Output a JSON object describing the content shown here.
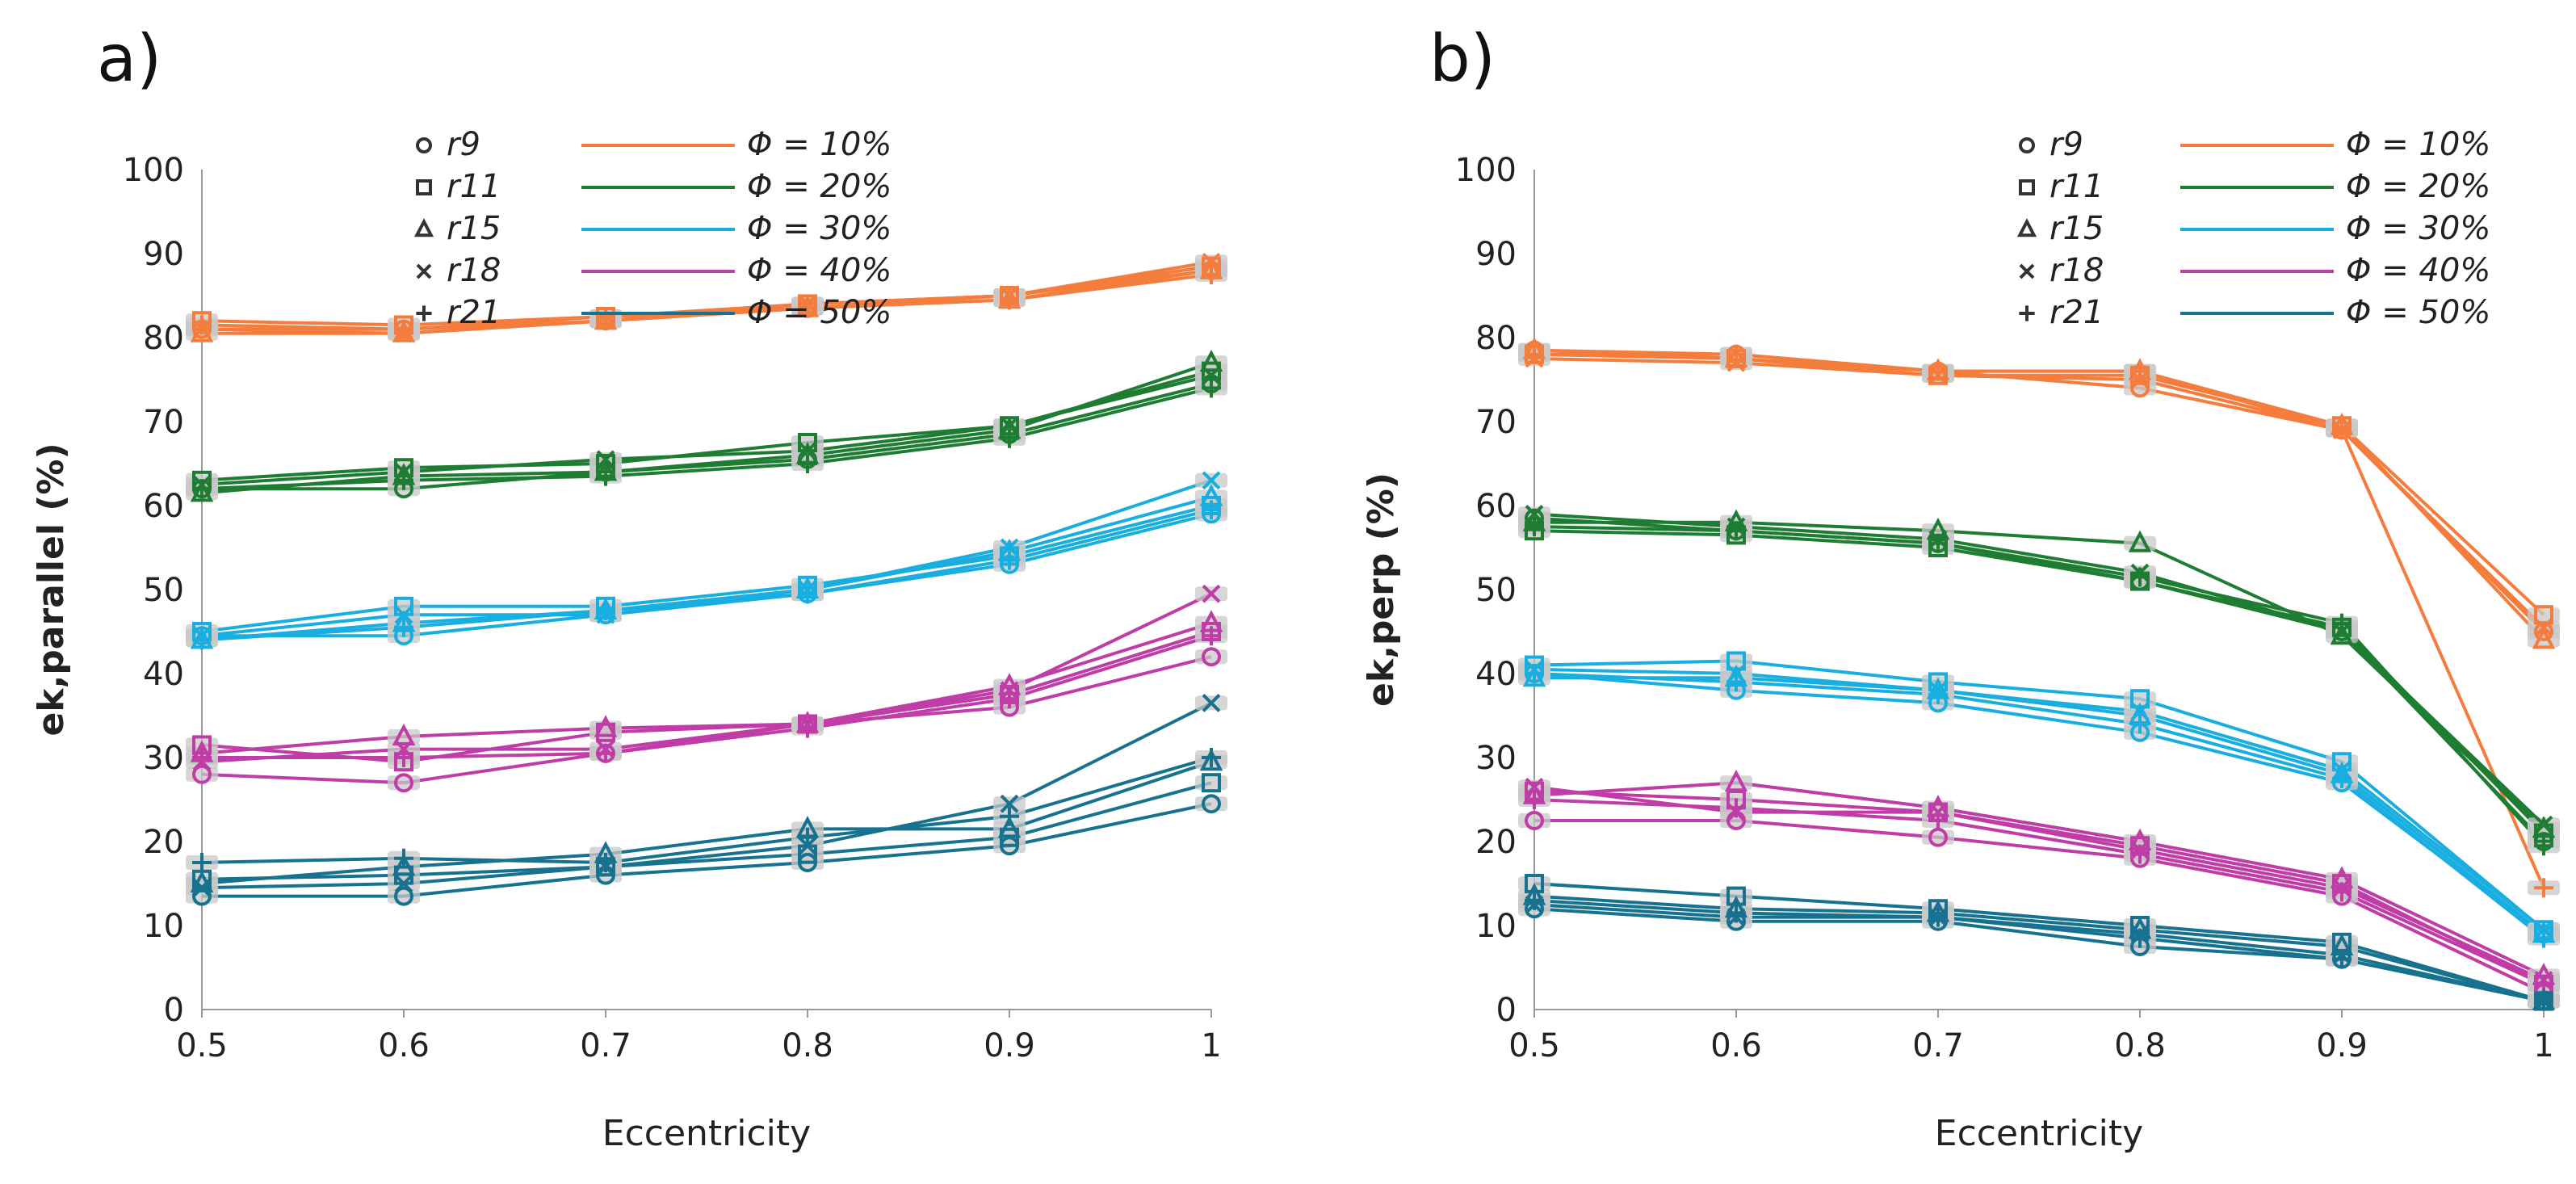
{
  "chart_data": [
    {
      "type": "line",
      "panel_label": "a)",
      "xlabel": "Eccentricity",
      "ylabel": "ek,parallel (%)",
      "x": [
        0.5,
        0.6,
        0.7,
        0.8,
        0.9,
        1
      ],
      "x_tick_labels": [
        "0.5",
        "0.6",
        "0.7",
        "0.8",
        "0.9",
        "1"
      ],
      "ylim": [
        0,
        100
      ],
      "y_ticks": [
        "0",
        "10",
        "20",
        "30",
        "40",
        "50",
        "60",
        "70",
        "80",
        "90",
        "100"
      ],
      "legend_markers": [
        {
          "label": "r9",
          "marker": "circle"
        },
        {
          "label": "r11",
          "marker": "square"
        },
        {
          "label": "r15",
          "marker": "triangle"
        },
        {
          "label": "r18",
          "marker": "cross"
        },
        {
          "label": "r21",
          "marker": "plus"
        }
      ],
      "legend_series": [
        {
          "label": "Φ = 10%",
          "color": "#f47c3c"
        },
        {
          "label": "Φ = 20%",
          "color": "#1e7d33"
        },
        {
          "label": "Φ = 30%",
          "color": "#19aee0"
        },
        {
          "label": "Φ = 40%",
          "color": "#c03ca6"
        },
        {
          "label": "Φ = 50%",
          "color": "#17728f"
        }
      ],
      "series": [
        {
          "name": "Φ = 10% r9",
          "color": "#f47c3c",
          "values": [
            81,
            81,
            82,
            83.5,
            85,
            88
          ]
        },
        {
          "name": "Φ = 10% r11",
          "color": "#f47c3c",
          "values": [
            82,
            81.5,
            82.5,
            84,
            85,
            88.5
          ]
        },
        {
          "name": "Φ = 10% r15",
          "color": "#f47c3c",
          "values": [
            80.5,
            80.5,
            82,
            83.5,
            84.5,
            88
          ]
        },
        {
          "name": "Φ = 10% r18",
          "color": "#f47c3c",
          "values": [
            81,
            80.5,
            82,
            84,
            85,
            89
          ]
        },
        {
          "name": "Φ = 10% r21",
          "color": "#f47c3c",
          "values": [
            81.5,
            81,
            82.5,
            83.5,
            84.5,
            87.5
          ]
        },
        {
          "name": "Φ = 20% r9",
          "color": "#1e7d33",
          "values": [
            62,
            62,
            64,
            65.5,
            68.5,
            74.5
          ]
        },
        {
          "name": "Φ = 20% r11",
          "color": "#1e7d33",
          "values": [
            63,
            64.5,
            65,
            67.5,
            69.5,
            76
          ]
        },
        {
          "name": "Φ = 20% r15",
          "color": "#1e7d33",
          "values": [
            61.5,
            63.5,
            64,
            66,
            69,
            77
          ]
        },
        {
          "name": "Φ = 20% r18",
          "color": "#1e7d33",
          "values": [
            62.5,
            64,
            65.5,
            66.5,
            69.5,
            75.5
          ]
        },
        {
          "name": "Φ = 20% r21",
          "color": "#1e7d33",
          "values": [
            62,
            63,
            63.5,
            65,
            68,
            74
          ]
        },
        {
          "name": "Φ = 30% r9",
          "color": "#19aee0",
          "values": [
            44.5,
            44.5,
            47,
            49.5,
            53,
            59
          ]
        },
        {
          "name": "Φ = 30% r11",
          "color": "#19aee0",
          "values": [
            45,
            48,
            48,
            50.5,
            54,
            60
          ]
        },
        {
          "name": "Φ = 30% r15",
          "color": "#19aee0",
          "values": [
            44,
            46,
            47.5,
            50,
            54.5,
            61
          ]
        },
        {
          "name": "Φ = 30% r18",
          "color": "#19aee0",
          "values": [
            44.5,
            47,
            47,
            50,
            55,
            63
          ]
        },
        {
          "name": "Φ = 30% r21",
          "color": "#19aee0",
          "values": [
            44,
            45.5,
            47.5,
            49.5,
            53.5,
            59.5
          ]
        },
        {
          "name": "Φ = 40% r9",
          "color": "#c03ca6",
          "values": [
            28,
            27,
            30.5,
            34,
            36,
            42
          ]
        },
        {
          "name": "Φ = 40% r11",
          "color": "#c03ca6",
          "values": [
            31.5,
            29.5,
            33,
            34,
            37.5,
            45
          ]
        },
        {
          "name": "Φ = 40% r15",
          "color": "#c03ca6",
          "values": [
            30.5,
            32.5,
            33.5,
            34,
            38.5,
            46
          ]
        },
        {
          "name": "Φ = 40% r18",
          "color": "#c03ca6",
          "values": [
            29.5,
            31,
            31,
            34,
            38,
            49.5
          ]
        },
        {
          "name": "Φ = 40% r21",
          "color": "#c03ca6",
          "values": [
            30,
            30,
            30.5,
            33.5,
            37,
            44.5
          ]
        },
        {
          "name": "Φ = 50% r9",
          "color": "#17728f",
          "values": [
            13.5,
            13.5,
            16,
            17.5,
            19.5,
            24.5
          ]
        },
        {
          "name": "Φ = 50% r11",
          "color": "#17728f",
          "values": [
            15.5,
            16,
            17,
            18.5,
            20.5,
            27
          ]
        },
        {
          "name": "Φ = 50% r15",
          "color": "#17728f",
          "values": [
            15,
            17,
            18.5,
            21.5,
            21.5,
            29.5
          ]
        },
        {
          "name": "Φ = 50% r18",
          "color": "#17728f",
          "values": [
            14.5,
            15,
            17,
            19.5,
            24.5,
            36.5
          ]
        },
        {
          "name": "Φ = 50% r21",
          "color": "#17728f",
          "values": [
            17.5,
            18,
            17.5,
            20.5,
            23,
            30
          ]
        }
      ]
    },
    {
      "type": "line",
      "panel_label": "b)",
      "xlabel": "Eccentricity",
      "ylabel": "ek,perp (%)",
      "x": [
        0.5,
        0.6,
        0.7,
        0.8,
        0.9,
        1
      ],
      "x_tick_labels": [
        "0.5",
        "0.6",
        "0.7",
        "0.8",
        "0.9",
        "1"
      ],
      "ylim": [
        0,
        100
      ],
      "y_ticks": [
        "0",
        "10",
        "20",
        "30",
        "40",
        "50",
        "60",
        "70",
        "80",
        "90",
        "100"
      ],
      "legend_markers": [
        {
          "label": "r9",
          "marker": "circle"
        },
        {
          "label": "r11",
          "marker": "square"
        },
        {
          "label": "r15",
          "marker": "triangle"
        },
        {
          "label": "r18",
          "marker": "cross"
        },
        {
          "label": "r21",
          "marker": "plus"
        }
      ],
      "legend_series": [
        {
          "label": "Φ = 10%",
          "color": "#f47c3c"
        },
        {
          "label": "Φ = 20%",
          "color": "#1e7d33"
        },
        {
          "label": "Φ = 30%",
          "color": "#19aee0"
        },
        {
          "label": "Φ = 40%",
          "color": "#c03ca6"
        },
        {
          "label": "Φ = 50%",
          "color": "#17728f"
        }
      ],
      "series": [
        {
          "name": "Φ = 10% r9",
          "color": "#f47c3c",
          "values": [
            78.5,
            78,
            76,
            74,
            69,
            45
          ]
        },
        {
          "name": "Φ = 10% r11",
          "color": "#f47c3c",
          "values": [
            78,
            77.5,
            75.5,
            75.5,
            69.5,
            47
          ]
        },
        {
          "name": "Φ = 10% r15",
          "color": "#f47c3c",
          "values": [
            78.5,
            77.5,
            76,
            76,
            69.5,
            44
          ]
        },
        {
          "name": "Φ = 10% r18",
          "color": "#f47c3c",
          "values": [
            77.5,
            77,
            75.5,
            75,
            69,
            45.5
          ]
        },
        {
          "name": "Φ = 10% r21",
          "color": "#f47c3c",
          "values": [
            78,
            78,
            76,
            76,
            69,
            14.5
          ]
        },
        {
          "name": "Φ = 20% r9",
          "color": "#1e7d33",
          "values": [
            58.5,
            57,
            55.5,
            51,
            45,
            20
          ]
        },
        {
          "name": "Φ = 20% r11",
          "color": "#1e7d33",
          "values": [
            57,
            56.5,
            55,
            51,
            45.5,
            21
          ]
        },
        {
          "name": "Φ = 20% r15",
          "color": "#1e7d33",
          "values": [
            58,
            58,
            57,
            55.5,
            44.5,
            21.5
          ]
        },
        {
          "name": "Φ = 20% r18",
          "color": "#1e7d33",
          "values": [
            59,
            57.5,
            56,
            52,
            45,
            22
          ]
        },
        {
          "name": "Φ = 20% r21",
          "color": "#1e7d33",
          "values": [
            57.5,
            57,
            55.5,
            51.5,
            46,
            19.5
          ]
        },
        {
          "name": "Φ = 30% r9",
          "color": "#19aee0",
          "values": [
            40,
            38,
            36.5,
            33,
            27,
            9
          ]
        },
        {
          "name": "Φ = 30% r11",
          "color": "#19aee0",
          "values": [
            41,
            41.5,
            39,
            37,
            29.5,
            9.5
          ]
        },
        {
          "name": "Φ = 30% r15",
          "color": "#19aee0",
          "values": [
            39.5,
            39.5,
            38,
            35,
            28,
            9
          ]
        },
        {
          "name": "Φ = 30% r18",
          "color": "#19aee0",
          "values": [
            40.5,
            40,
            38,
            35.5,
            28.5,
            9.5
          ]
        },
        {
          "name": "Φ = 30% r21",
          "color": "#19aee0",
          "values": [
            40,
            39,
            37.5,
            34,
            27.5,
            8.5
          ]
        },
        {
          "name": "Φ = 40% r9",
          "color": "#c03ca6",
          "values": [
            22.5,
            22.5,
            20.5,
            18,
            13.5,
            2
          ]
        },
        {
          "name": "Φ = 40% r11",
          "color": "#c03ca6",
          "values": [
            26,
            25,
            23.5,
            19.5,
            15,
            3
          ]
        },
        {
          "name": "Φ = 40% r15",
          "color": "#c03ca6",
          "values": [
            25.5,
            27,
            24,
            20,
            15.5,
            4
          ]
        },
        {
          "name": "Φ = 40% r18",
          "color": "#c03ca6",
          "values": [
            26.5,
            23.5,
            23.5,
            19,
            14.5,
            3.5
          ]
        },
        {
          "name": "Φ = 40% r21",
          "color": "#c03ca6",
          "values": [
            25,
            24,
            22.5,
            18.5,
            14,
            3
          ]
        },
        {
          "name": "Φ = 50% r9",
          "color": "#17728f",
          "values": [
            12,
            10.5,
            10.5,
            7.5,
            6,
            1
          ]
        },
        {
          "name": "Φ = 50% r11",
          "color": "#17728f",
          "values": [
            15,
            13.5,
            12,
            10,
            8,
            1
          ]
        },
        {
          "name": "Φ = 50% r15",
          "color": "#17728f",
          "values": [
            13.5,
            12,
            11.5,
            9.5,
            7.5,
            1
          ]
        },
        {
          "name": "Φ = 50% r18",
          "color": "#17728f",
          "values": [
            12.5,
            11,
            11,
            9,
            6.5,
            1
          ]
        },
        {
          "name": "Φ = 50% r21",
          "color": "#17728f",
          "values": [
            13,
            11.5,
            11,
            8.5,
            6,
            1
          ]
        }
      ]
    }
  ]
}
